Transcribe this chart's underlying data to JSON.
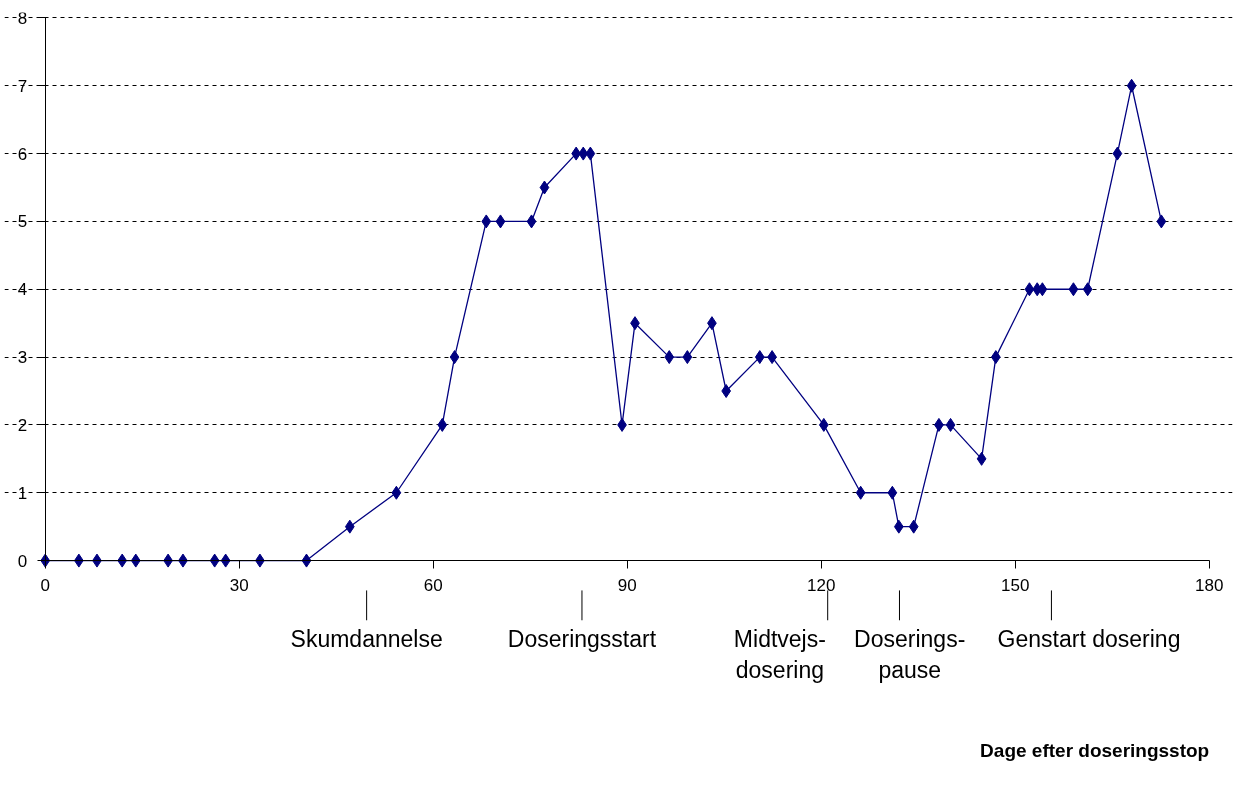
{
  "chart_data": {
    "type": "line",
    "x": [
      0,
      5.2,
      8,
      11.9,
      14,
      19,
      21.3,
      26.2,
      27.9,
      33.2,
      40.4,
      47.1,
      54.3,
      61.4,
      63.3,
      68.2,
      70.4,
      75.2,
      77.2,
      82.1,
      83.2,
      84.3,
      89.2,
      91.2,
      96.5,
      99.3,
      103.1,
      105.3,
      110.5,
      112.4,
      120.4,
      126.1,
      131,
      132,
      134.3,
      138.2,
      140,
      144.8,
      147,
      152.2,
      153.4,
      154.2,
      159,
      161.2,
      165.8,
      168,
      172.6
    ],
    "series": [
      {
        "color": "#000080",
        "values": [
          0,
          0,
          0,
          0,
          0,
          0,
          0,
          0,
          0,
          0,
          0,
          0.5,
          1,
          2,
          3,
          5,
          5,
          5,
          5.5,
          6,
          6,
          6,
          2,
          3.5,
          3,
          3,
          3.5,
          2.5,
          3,
          3,
          2,
          1,
          1,
          0.5,
          0.5,
          2,
          2,
          1.5,
          3,
          4,
          4,
          4,
          4,
          4,
          6,
          7,
          5
        ]
      }
    ],
    "xlim": [
      0,
      180
    ],
    "ylim": [
      0,
      8
    ],
    "xticks": [
      0,
      30,
      60,
      90,
      120,
      150,
      180
    ],
    "yticks": [
      0,
      1,
      2,
      3,
      4,
      5,
      6,
      7,
      8
    ],
    "grid": "y",
    "marker": "diamond",
    "line_style": "solid",
    "ref_lines": [
      {
        "axis": "x",
        "value": 49.7,
        "label": "Skumdannelse"
      },
      {
        "axis": "x",
        "value": 83,
        "label": "Doseringsstart"
      },
      {
        "axis": "x",
        "value": 121,
        "label": "Midtvejs-\ndosering"
      },
      {
        "axis": "x",
        "value": 132.1,
        "label": "Doserings-\npause"
      },
      {
        "axis": "x",
        "value": 155.6,
        "label": "Genstart dosering"
      }
    ],
    "annotations": [
      "Dage efter doseringsstop"
    ]
  }
}
